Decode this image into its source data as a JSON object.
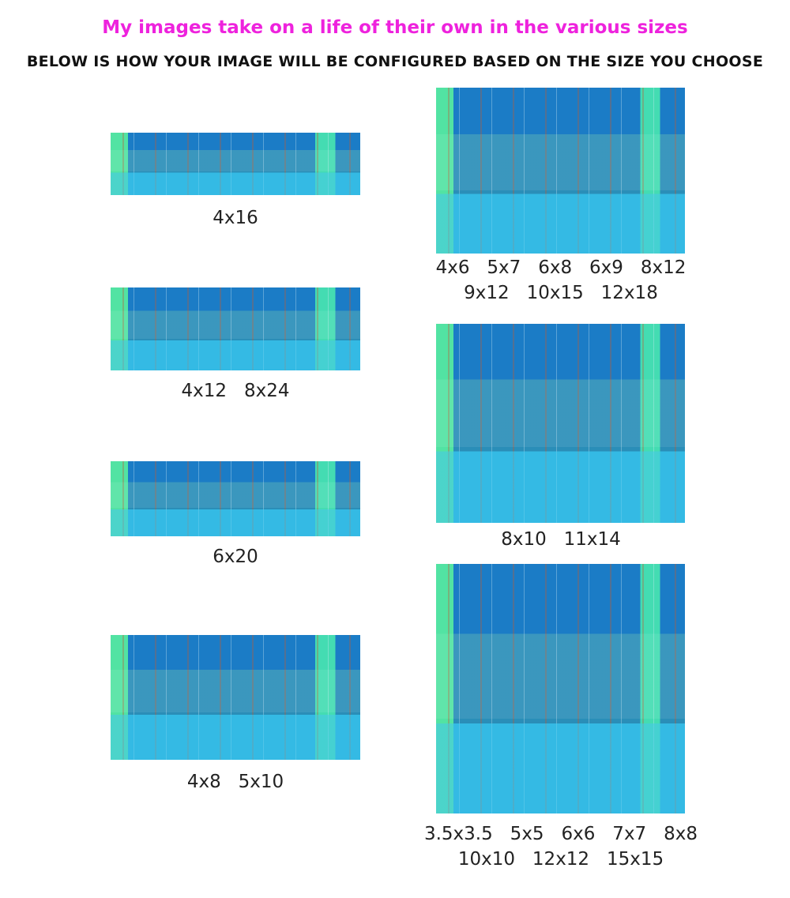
{
  "header": {
    "title": "My images take on a life of their own in the various sizes",
    "subtitle": "BELOW IS HOW YOUR IMAGE WILL BE CONFIGURED BASED ON THE SIZE YOU CHOOSE"
  },
  "panels": [
    {
      "caption": [
        "4x16"
      ]
    },
    {
      "caption": [
        "4x12   8x24"
      ]
    },
    {
      "caption": [
        "6x20"
      ]
    },
    {
      "caption": [
        "4x8   5x10"
      ]
    },
    {
      "caption": [
        "4x6   5x7   6x8   6x9   8x12",
        "9x12   10x15   12x18"
      ]
    },
    {
      "caption": [
        "8x10   11x14"
      ]
    },
    {
      "caption": [
        "3.5x3.5   5x5   6x6   7x7   8x8",
        "10x10   12x12   15x15"
      ]
    }
  ]
}
